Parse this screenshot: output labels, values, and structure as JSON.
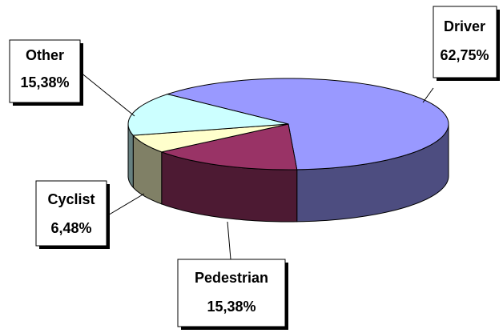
{
  "chart_data": {
    "type": "pie",
    "categories": [
      "Driver",
      "Pedestrian",
      "Cyclist",
      "Other"
    ],
    "values": [
      62.75,
      15.38,
      6.48,
      15.38
    ],
    "value_labels": [
      "62,75%",
      "15,38%",
      "6,48%",
      "15,38%"
    ],
    "colors": [
      "#9999ff",
      "#993366",
      "#ffffcc",
      "#ccffff"
    ]
  }
}
